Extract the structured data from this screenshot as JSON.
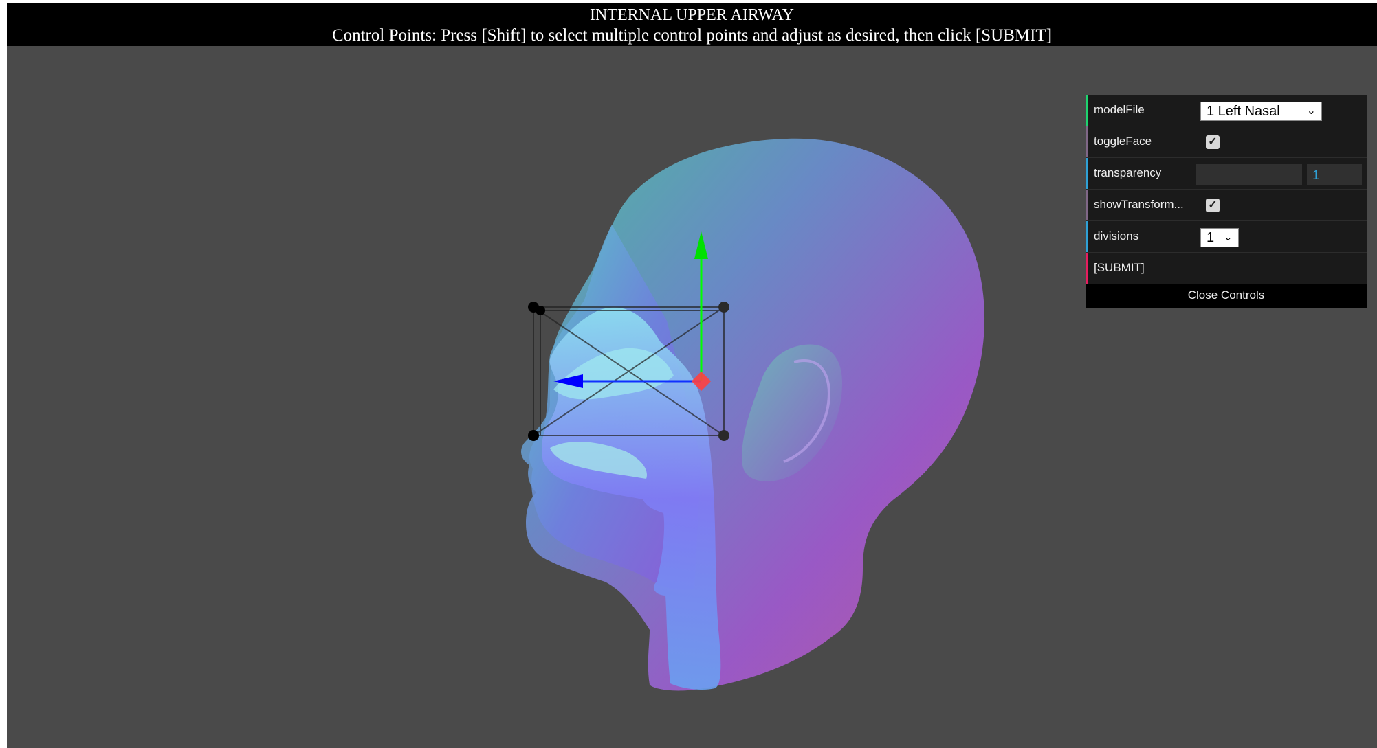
{
  "header": {
    "title": "INTERNAL UPPER AIRWAY",
    "instructions": "Control Points: Press [Shift] to select multiple control points and adjust as desired, then click [SUBMIT]"
  },
  "gui": {
    "modelFile": {
      "label": "modelFile",
      "value": "1 Left Nasal",
      "accent": "#1ed36f"
    },
    "toggleFace": {
      "label": "toggleFace",
      "checked": true,
      "accent": "#806787"
    },
    "transparency": {
      "label": "transparency",
      "value": "1",
      "accent": "#2fa1d6"
    },
    "showTransform": {
      "label": "showTransform...",
      "checked": true,
      "accent": "#806787"
    },
    "divisions": {
      "label": "divisions",
      "value": "1",
      "accent": "#2fa1d6"
    },
    "submit": {
      "label": "[SUBMIT]",
      "accent": "#e61d5f"
    },
    "close": "Close Controls"
  },
  "icons": {
    "checkmark": "✓",
    "chevron": "⌄"
  }
}
